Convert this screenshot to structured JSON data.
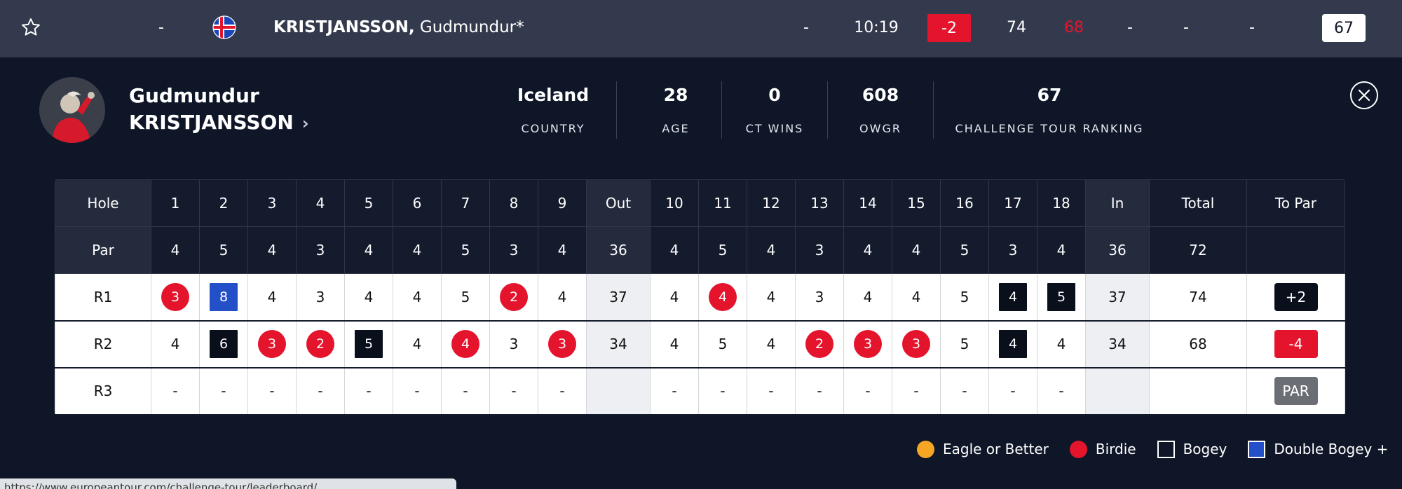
{
  "leaderboard_row": {
    "position": "-",
    "player_last": "KRISTJANSSON,",
    "player_first": "Gudmundur*",
    "thru": "-",
    "tee_time": "10:19",
    "to_par": "-2",
    "r1": "74",
    "r2": "68",
    "r3": "-",
    "r4": "-",
    "total": "-",
    "ranking": "67"
  },
  "player": {
    "first_name": "Gudmundur",
    "last_name": "KRISTJANSSON",
    "stats": [
      {
        "value": "Iceland",
        "label": "COUNTRY"
      },
      {
        "value": "28",
        "label": "AGE"
      },
      {
        "value": "0",
        "label": "CT WINS"
      },
      {
        "value": "608",
        "label": "OWGR"
      },
      {
        "value": "67",
        "label": "CHALLENGE TOUR RANKING"
      }
    ]
  },
  "scorecard": {
    "header": [
      "Hole",
      "1",
      "2",
      "3",
      "4",
      "5",
      "6",
      "7",
      "8",
      "9",
      "Out",
      "10",
      "11",
      "12",
      "13",
      "14",
      "15",
      "16",
      "17",
      "18",
      "In",
      "Total",
      "To Par"
    ],
    "par": [
      "Par",
      "4",
      "5",
      "4",
      "3",
      "4",
      "4",
      "5",
      "3",
      "4",
      "36",
      "4",
      "5",
      "4",
      "3",
      "4",
      "4",
      "5",
      "3",
      "4",
      "36",
      "72",
      ""
    ],
    "rounds": [
      {
        "label": "R1",
        "scores": [
          "3",
          "8",
          "4",
          "3",
          "4",
          "4",
          "5",
          "2",
          "4",
          "37",
          "4",
          "4",
          "4",
          "3",
          "4",
          "4",
          "5",
          "4",
          "5",
          "37",
          "74"
        ],
        "marks": [
          "birdie",
          "dbogey",
          "",
          "",
          "",
          "",
          "",
          "birdie",
          "",
          "",
          "",
          "birdie",
          "",
          "",
          "",
          "",
          "",
          "bogey",
          "bogey",
          "",
          ""
        ],
        "to_par": "+2",
        "to_par_kind": "over"
      },
      {
        "label": "R2",
        "scores": [
          "4",
          "6",
          "3",
          "2",
          "5",
          "4",
          "4",
          "3",
          "3",
          "34",
          "4",
          "5",
          "4",
          "2",
          "3",
          "3",
          "5",
          "4",
          "4",
          "34",
          "68"
        ],
        "marks": [
          "",
          "bogey",
          "birdie",
          "birdie",
          "bogey",
          "",
          "birdie",
          "",
          "birdie",
          "",
          "",
          "",
          "",
          "birdie",
          "birdie",
          "birdie",
          "",
          "bogey",
          "",
          "",
          ""
        ],
        "to_par": "-4",
        "to_par_kind": "under"
      },
      {
        "label": "R3",
        "scores": [
          "-",
          "-",
          "-",
          "-",
          "-",
          "-",
          "-",
          "-",
          "-",
          "",
          "-",
          "-",
          "-",
          "-",
          "-",
          "-",
          "-",
          "-",
          "-",
          "",
          ""
        ],
        "marks": [
          "",
          "",
          "",
          "",
          "",
          "",
          "",
          "",
          "",
          "",
          "",
          "",
          "",
          "",
          "",
          "",
          "",
          "",
          "",
          "",
          ""
        ],
        "to_par": "PAR",
        "to_par_kind": "even"
      }
    ]
  },
  "legend": [
    {
      "kind": "eagle",
      "label": "Eagle or Better"
    },
    {
      "kind": "birdie",
      "label": "Birdie"
    },
    {
      "kind": "bogey",
      "label": "Bogey"
    },
    {
      "kind": "dbogey",
      "label": "Double Bogey +"
    }
  ],
  "colors": {
    "background": "#0e1628",
    "top_bar": "#343a4d",
    "birdie": "#e5142d",
    "double_bogey": "#2350c8",
    "eagle": "#f5a623"
  },
  "status_url": "https://www.europeantour.com/challenge-tour/leaderboard/"
}
